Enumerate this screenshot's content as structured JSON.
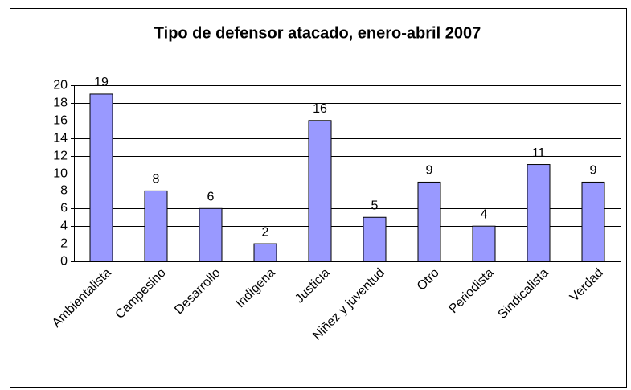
{
  "chart_data": {
    "type": "bar",
    "title": "Tipo de defensor atacado, enero-abril 2007",
    "categories": [
      "Ambientalista",
      "Campesino",
      "Desarrollo",
      "Indigena",
      "Justicia",
      "Niñez y juventud",
      "Otro",
      "Periodista",
      "Sindicalista",
      "Verdad"
    ],
    "values": [
      19,
      8,
      6,
      2,
      16,
      5,
      9,
      4,
      11,
      9
    ],
    "color": "#9999ff",
    "ylim": [
      0,
      20
    ],
    "yticks": [
      0,
      2,
      4,
      6,
      8,
      10,
      12,
      14,
      16,
      18,
      20
    ],
    "grid": true
  }
}
